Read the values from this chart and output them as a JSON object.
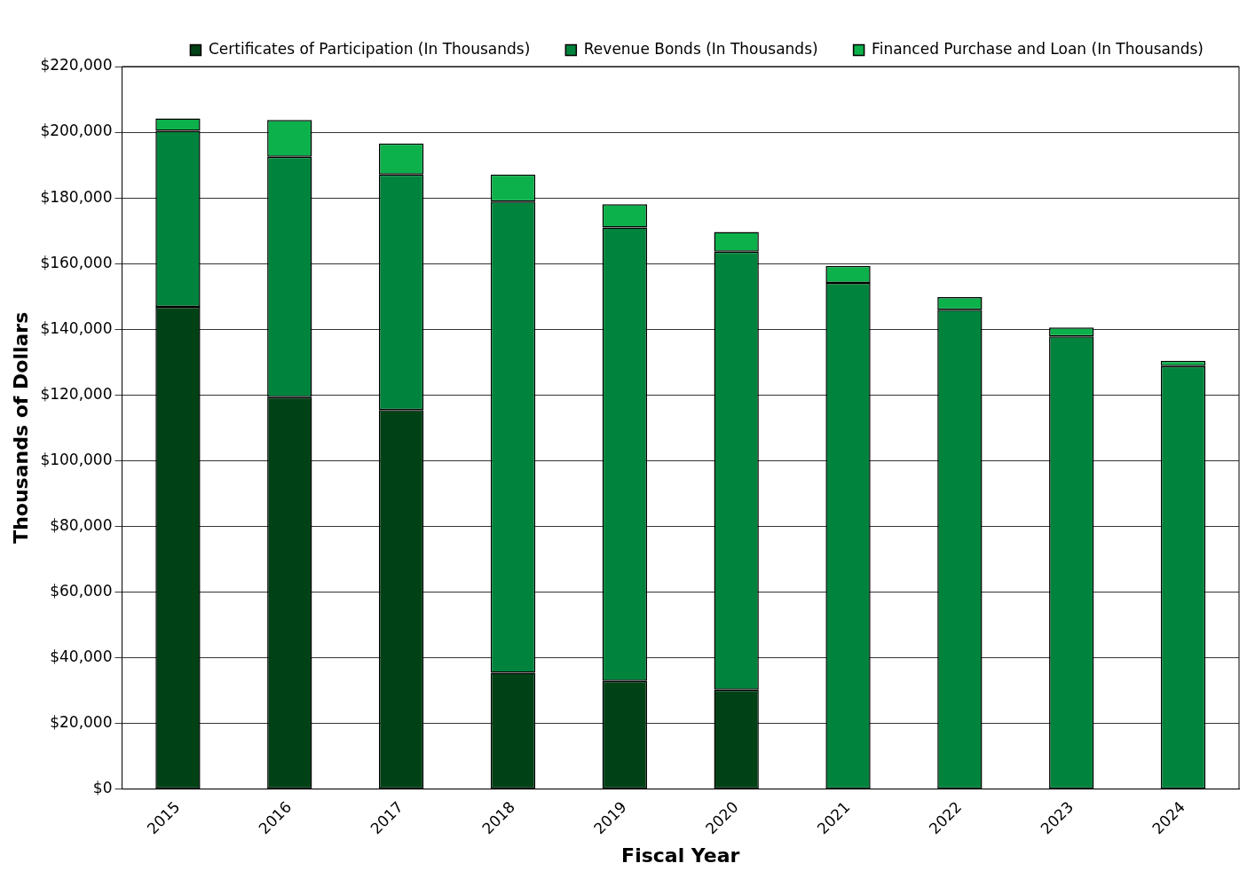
{
  "chart_data": {
    "type": "bar",
    "stacked": true,
    "xlabel": "Fiscal Year",
    "ylabel": "Thousands of Dollars",
    "categories": [
      "2015",
      "2016",
      "2017",
      "2018",
      "2019",
      "2020",
      "2021",
      "2022",
      "2023",
      "2024"
    ],
    "series": [
      {
        "name": "Certificates of Participation (In Thousands)",
        "color": "#004216",
        "values": [
          146800,
          119300,
          115400,
          35400,
          32900,
          30200,
          null,
          null,
          null,
          null
        ]
      },
      {
        "name": "Revenue Bonds (In Thousands)",
        "color": "#00843d",
        "values": [
          53600,
          73200,
          71700,
          143500,
          138100,
          133400,
          154100,
          145900,
          137800,
          128800
        ]
      },
      {
        "name": "Financed Purchase and Loan (In Thousands)",
        "color": "#0db14b",
        "values": [
          3800,
          11200,
          9500,
          8200,
          7100,
          6000,
          5200,
          3900,
          2700,
          1600
        ]
      }
    ],
    "ylim": [
      0,
      220000
    ],
    "yticks": [
      {
        "value": 0,
        "label": "$0"
      },
      {
        "value": 20000,
        "label": "$20,000"
      },
      {
        "value": 40000,
        "label": "$40,000"
      },
      {
        "value": 60000,
        "label": "$60,000"
      },
      {
        "value": 80000,
        "label": "$80,000"
      },
      {
        "value": 100000,
        "label": "$100,000"
      },
      {
        "value": 120000,
        "label": "$120,000"
      },
      {
        "value": 140000,
        "label": "$140,000"
      },
      {
        "value": 160000,
        "label": "$160,000"
      },
      {
        "value": 180000,
        "label": "$180,000"
      },
      {
        "value": 200000,
        "label": "$200,000"
      },
      {
        "value": 220000,
        "label": "$220,000"
      }
    ],
    "grid": "y",
    "legend": "top"
  }
}
